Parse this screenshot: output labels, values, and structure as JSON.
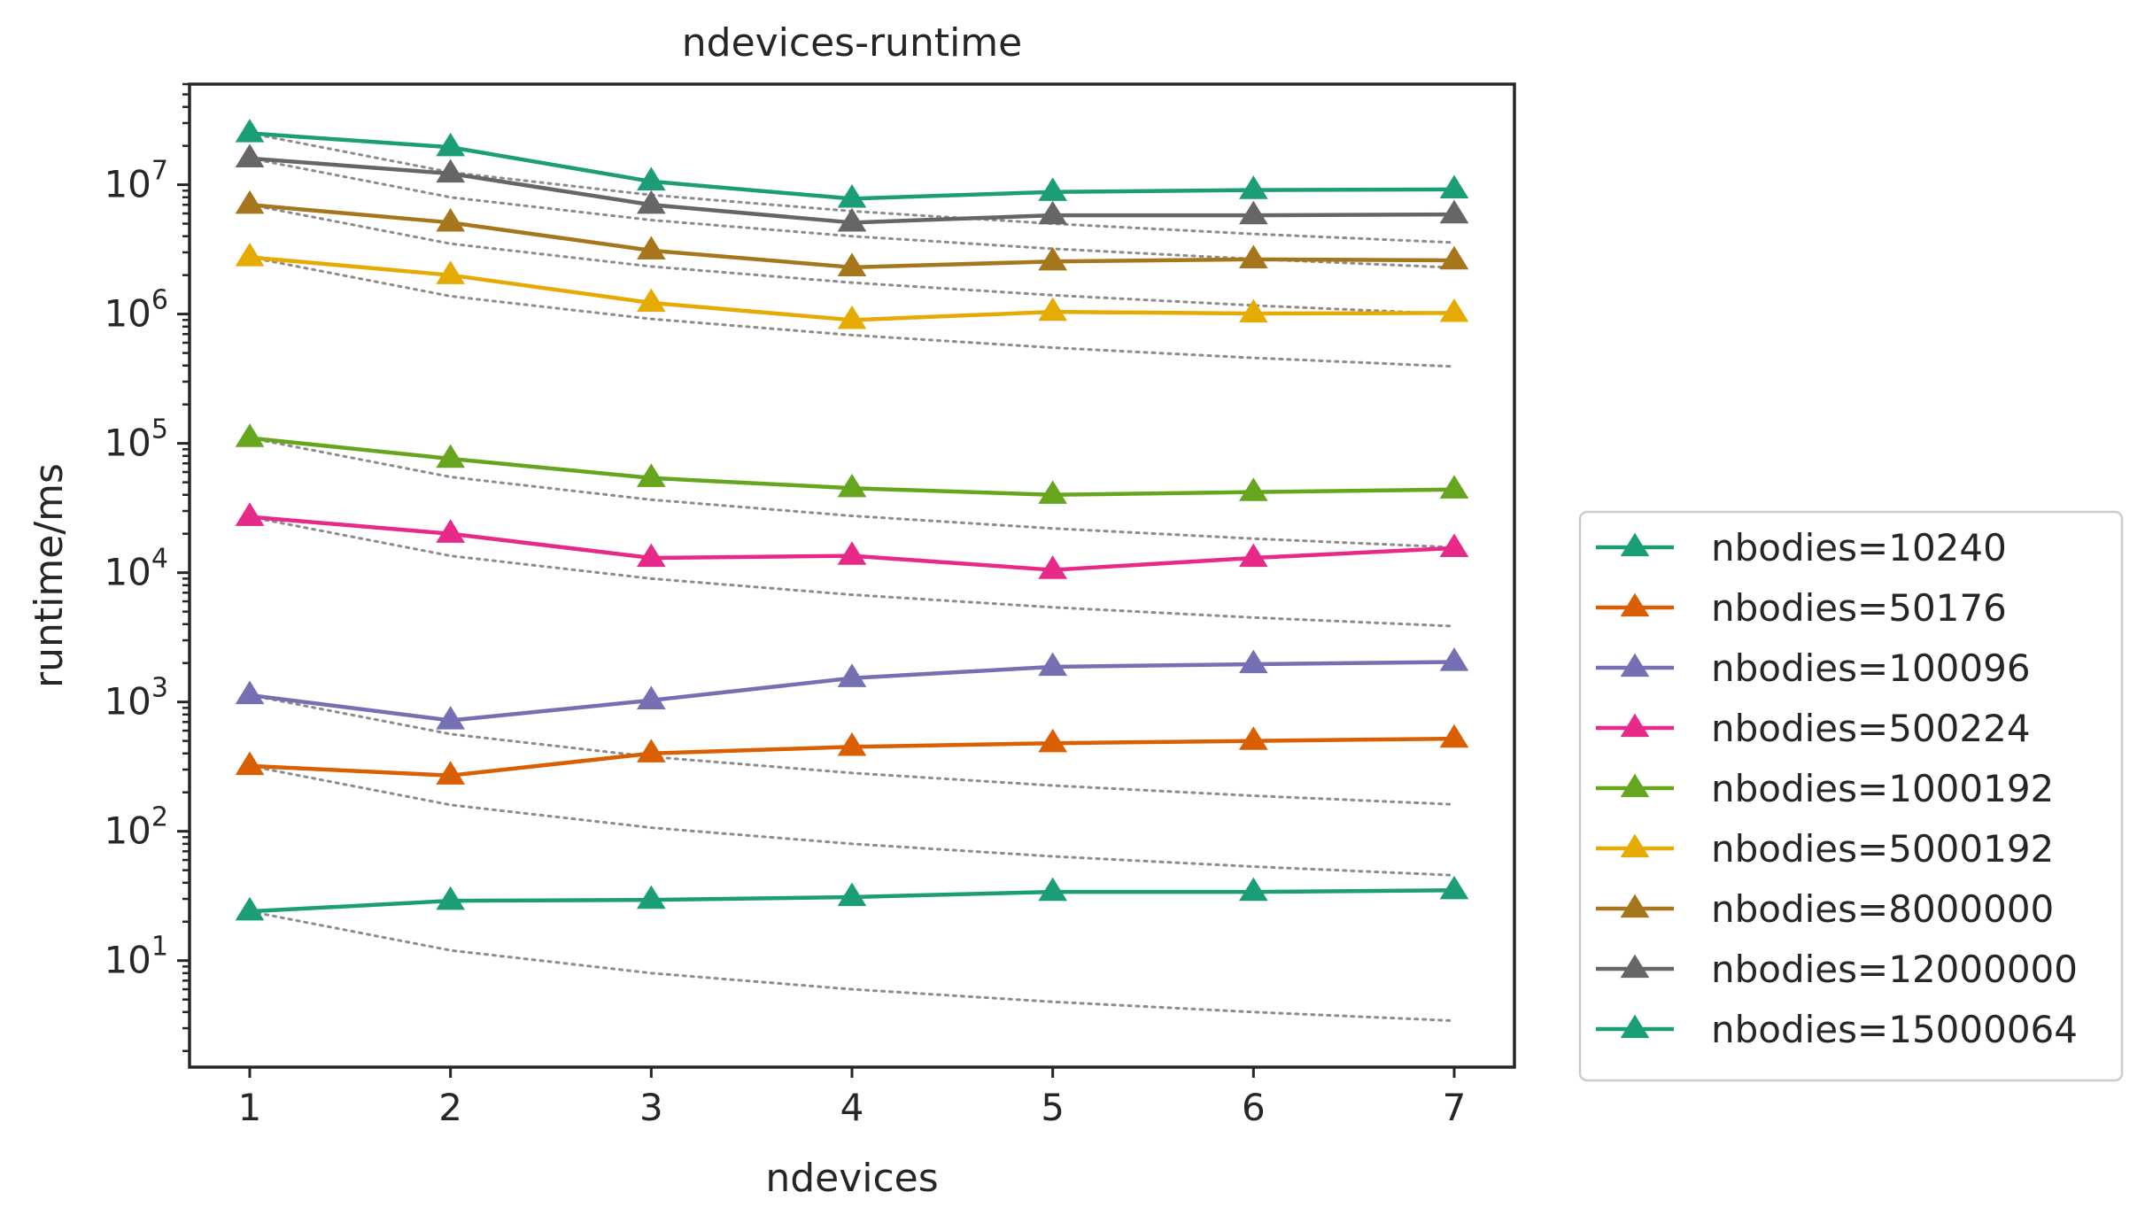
{
  "chart_data": {
    "type": "line",
    "title": "ndevices-runtime",
    "xlabel": "ndevices",
    "ylabel": "runtime/ms",
    "y_scale": "log",
    "x": [
      1,
      2,
      3,
      4,
      5,
      6,
      7
    ],
    "x_ticks": [
      "1",
      "2",
      "3",
      "4",
      "5",
      "6",
      "7"
    ],
    "xlim": [
      0.7,
      7.3
    ],
    "ylim": [
      1.5,
      60000000
    ],
    "y_ticks": [
      {
        "value": 10,
        "base": "10",
        "exp": "1"
      },
      {
        "value": 100,
        "base": "10",
        "exp": "2"
      },
      {
        "value": 1000,
        "base": "10",
        "exp": "3"
      },
      {
        "value": 10000,
        "base": "10",
        "exp": "4"
      },
      {
        "value": 100000,
        "base": "10",
        "exp": "5"
      },
      {
        "value": 1000000,
        "base": "10",
        "exp": "6"
      },
      {
        "value": 10000000,
        "base": "10",
        "exp": "7"
      }
    ],
    "grid": false,
    "legend_position": "right-bottom",
    "marker": "triangle-up",
    "ideal_line_style": "dotted",
    "ideal_line_color": "#8c8c8c",
    "series": [
      {
        "name": "nbodies=10240",
        "color": "#1b9e77",
        "values": [
          24,
          29,
          29.5,
          31,
          34,
          34,
          35
        ]
      },
      {
        "name": "nbodies=50176",
        "color": "#d95f02",
        "values": [
          320,
          270,
          400,
          450,
          480,
          500,
          520
        ]
      },
      {
        "name": "nbodies=100096",
        "color": "#7570b3",
        "values": [
          1130,
          720,
          1030,
          1530,
          1870,
          1960,
          2040
        ]
      },
      {
        "name": "nbodies=500224",
        "color": "#e7298a",
        "values": [
          27000,
          20000,
          13000,
          13500,
          10500,
          13000,
          15500
        ]
      },
      {
        "name": "nbodies=1000192",
        "color": "#66a61e",
        "values": [
          110000,
          76000,
          54000,
          45000,
          40000,
          42000,
          44000
        ]
      },
      {
        "name": "nbodies=5000192",
        "color": "#e6ab02",
        "values": [
          2750000,
          2000000,
          1220000,
          900000,
          1040000,
          1010000,
          1020000
        ]
      },
      {
        "name": "nbodies=8000000",
        "color": "#a6761d",
        "values": [
          7000000,
          5100000,
          3100000,
          2300000,
          2550000,
          2650000,
          2600000
        ]
      },
      {
        "name": "nbodies=12000000",
        "color": "#666666",
        "values": [
          16000000,
          12200000,
          7000000,
          5100000,
          5800000,
          5800000,
          5900000
        ]
      },
      {
        "name": "nbodies=15000064",
        "color": "#1b9e77",
        "values": [
          25000000,
          19500000,
          10600000,
          7800000,
          8800000,
          9100000,
          9200000
        ]
      }
    ]
  }
}
